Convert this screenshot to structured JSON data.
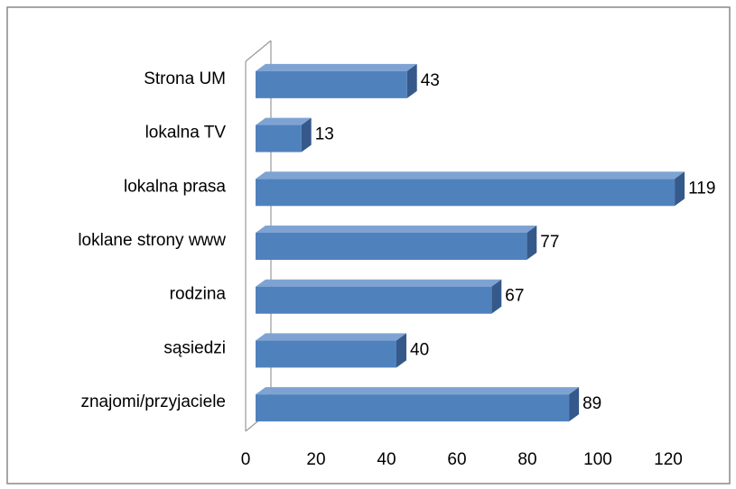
{
  "chart_data": {
    "type": "bar3d_horizontal",
    "categories": [
      "Strona UM",
      "lokalna TV",
      "lokalna prasa",
      "loklane strony www",
      "rodzina",
      "sąsiedzi",
      "znajomi/przyjaciele"
    ],
    "values": [
      43,
      13,
      119,
      77,
      67,
      40,
      89
    ],
    "color": "#4f81bd",
    "xlim": [
      0,
      120
    ],
    "xticks": [
      0,
      20,
      40,
      60,
      80,
      100,
      120
    ]
  }
}
